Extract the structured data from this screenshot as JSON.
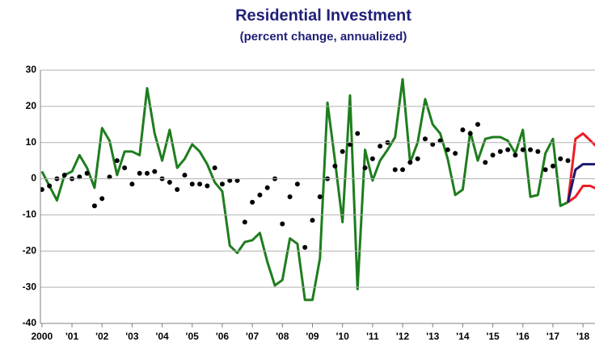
{
  "chart_data": {
    "type": "line",
    "title": "Residential Investment",
    "subtitle": "(percent change, annualized)",
    "x": [
      2000,
      2000.25,
      2000.5,
      2000.75,
      2001,
      2001.25,
      2001.5,
      2001.75,
      2002,
      2002.25,
      2002.5,
      2002.75,
      2003,
      2003.25,
      2003.5,
      2003.75,
      2004,
      2004.25,
      2004.5,
      2004.75,
      2005,
      2005.25,
      2005.5,
      2005.75,
      2006,
      2006.25,
      2006.5,
      2006.75,
      2007,
      2007.25,
      2007.5,
      2007.75,
      2008,
      2008.25,
      2008.5,
      2008.75,
      2009,
      2009.25,
      2009.5,
      2009.75,
      2010,
      2010.25,
      2010.5,
      2010.75,
      2011,
      2011.25,
      2011.5,
      2011.75,
      2012,
      2012.25,
      2012.5,
      2012.75,
      2013,
      2013.25,
      2013.5,
      2013.75,
      2014,
      2014.25,
      2014.5,
      2014.75,
      2015,
      2015.25,
      2015.5,
      2015.75,
      2016,
      2016.25,
      2016.5,
      2016.75,
      2017,
      2017.25,
      2017.5
    ],
    "series": [
      {
        "color": "#1e7d1e",
        "mode": "line",
        "values": [
          2,
          -2,
          -6,
          1,
          2,
          6.5,
          3,
          -2.5,
          14,
          10.5,
          1,
          7.5,
          7.5,
          6.5,
          25,
          12.5,
          5,
          13.5,
          3,
          5.5,
          9.5,
          7.5,
          4,
          -1,
          -3.5,
          -18.5,
          -20.5,
          -17.5,
          -17,
          -15,
          -23,
          -29.5,
          -28,
          -16.5,
          -18,
          -33.5,
          -33.5,
          -22,
          21,
          5,
          -12,
          23,
          -30.5,
          8,
          -0.5,
          5,
          8,
          11.5,
          27.5,
          4.5,
          10,
          22,
          15,
          12.5,
          5.5,
          -4.5,
          -3,
          13,
          5,
          11,
          11.5,
          11.5,
          10.5,
          7,
          13.5,
          -5,
          -4.5,
          7,
          11,
          -7.5,
          -6.5
        ]
      },
      {
        "color": "#000000",
        "mode": "markers",
        "values": [
          -3,
          -2,
          0,
          1,
          0,
          0.5,
          1.5,
          -7.5,
          -5.5,
          0.5,
          5,
          3,
          -1.5,
          1.5,
          1.5,
          2,
          0,
          -1,
          -3,
          1,
          -1.5,
          -1.5,
          -2,
          3,
          -1.5,
          -0.5,
          -0.5,
          -12,
          -6.5,
          -4.5,
          -2.5,
          0,
          -12.5,
          -5,
          -1.5,
          -19,
          -11.5,
          -5,
          0,
          3.5,
          7.5,
          9.5,
          12.5,
          3,
          5.5,
          9,
          10,
          2.5,
          2.5,
          4.5,
          5.5,
          11,
          9.5,
          10.5,
          8,
          7,
          13.5,
          12.5,
          15,
          4.5,
          6.5,
          7.5,
          8,
          6.5,
          8,
          8,
          7.5,
          2.5,
          3.5,
          5.5,
          5
        ]
      },
      {
        "color": "#ee1c25",
        "mode": "line",
        "x": [
          2017.5,
          2017.75,
          2018,
          2018.25,
          2018.5
        ],
        "values": [
          -6.5,
          11,
          12.5,
          10.5,
          8.5
        ]
      },
      {
        "color": "#ee1c25",
        "mode": "line",
        "x": [
          2017.5,
          2017.75,
          2018,
          2018.25,
          2018.5
        ],
        "values": [
          -6.5,
          -5,
          -2,
          -2,
          -3
        ]
      },
      {
        "color": "#1a1a6e",
        "mode": "line",
        "x": [
          2017.5,
          2017.75,
          2018,
          2018.25,
          2018.5
        ],
        "values": [
          -6.5,
          2.5,
          4,
          4,
          4
        ]
      }
    ],
    "xlim": [
      1999.95,
      2018.4
    ],
    "xticks": [
      {
        "value": 2000,
        "label": "2000"
      },
      {
        "value": 2001,
        "label": "'01"
      },
      {
        "value": 2002,
        "label": "'02"
      },
      {
        "value": 2003,
        "label": "'03"
      },
      {
        "value": 2004,
        "label": "'04"
      },
      {
        "value": 2005,
        "label": "'05"
      },
      {
        "value": 2006,
        "label": "'06"
      },
      {
        "value": 2007,
        "label": "'07"
      },
      {
        "value": 2008,
        "label": "'08"
      },
      {
        "value": 2009,
        "label": "'09"
      },
      {
        "value": 2010,
        "label": "'10"
      },
      {
        "value": 2011,
        "label": "'11"
      },
      {
        "value": 2012,
        "label": "'12"
      },
      {
        "value": 2013,
        "label": "'13"
      },
      {
        "value": 2014,
        "label": "'14"
      },
      {
        "value": 2015,
        "label": "'15"
      },
      {
        "value": 2016,
        "label": "'16"
      },
      {
        "value": 2017,
        "label": "'17"
      },
      {
        "value": 2018,
        "label": "'18"
      }
    ],
    "ylim": [
      -40,
      30
    ],
    "yticks": [
      -40,
      -30,
      -20,
      -10,
      0,
      10,
      20,
      30
    ],
    "grid": true
  }
}
